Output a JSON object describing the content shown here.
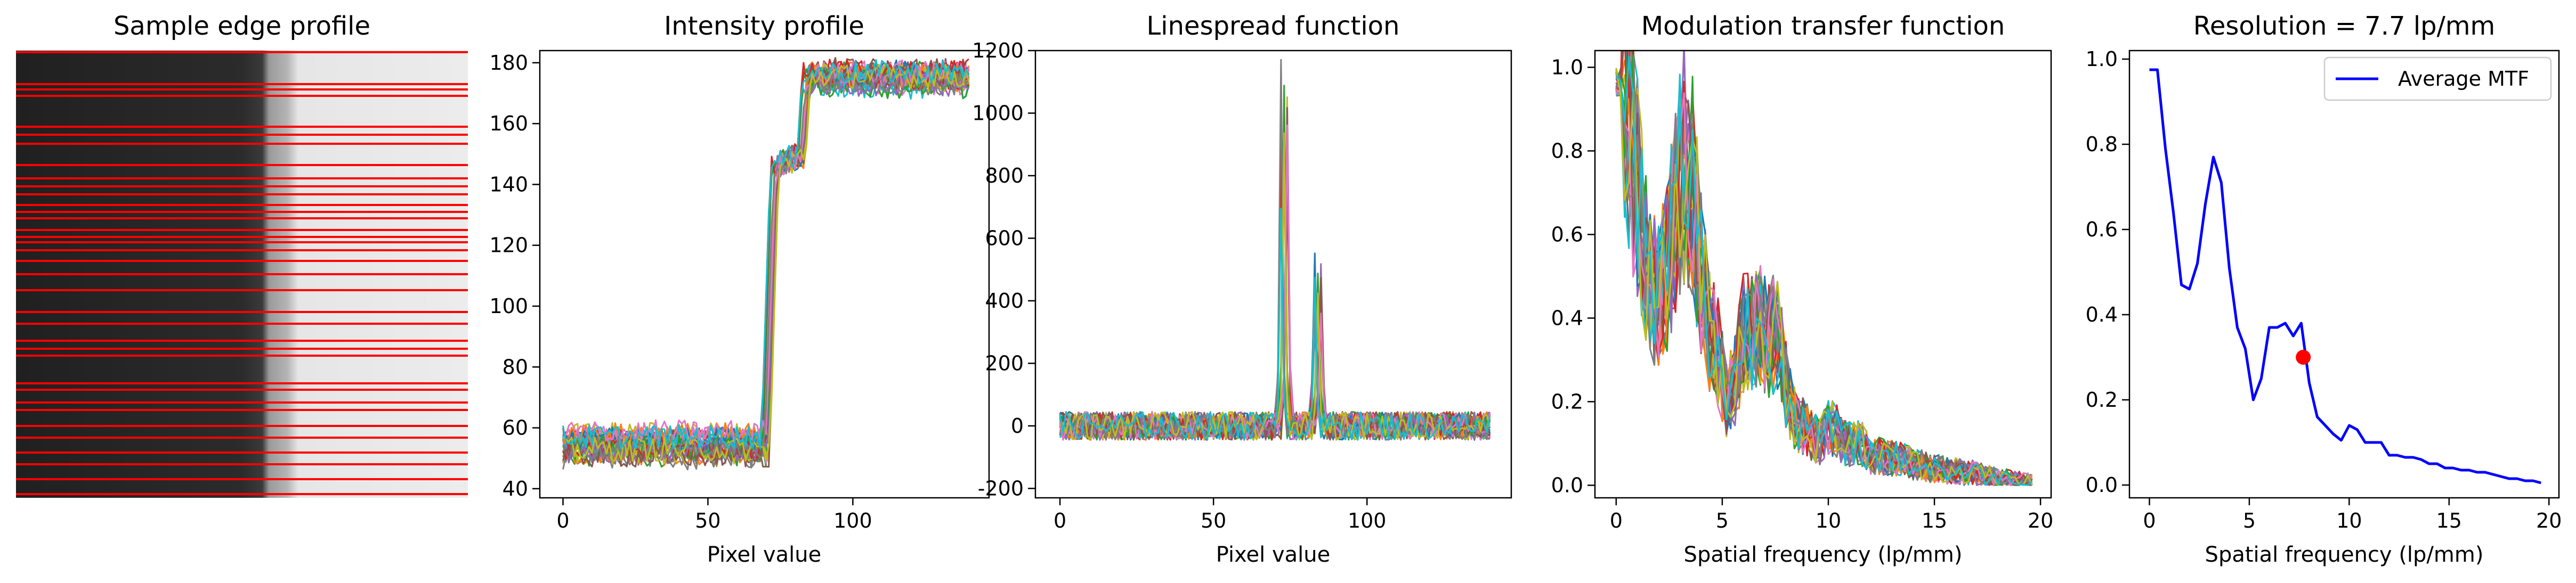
{
  "chart_data": [
    {
      "type": "image",
      "title": "Sample edge profile",
      "edge_line_color": "#ff0000"
    },
    {
      "type": "line",
      "title": "Intensity profile",
      "xlabel": "Pixel value",
      "ylabel": "",
      "xlim": [
        -8,
        147
      ],
      "ylim": [
        37,
        184
      ],
      "xticks": [
        0,
        50,
        100
      ],
      "yticks": [
        40,
        60,
        80,
        100,
        120,
        140,
        160,
        180
      ],
      "series_count": 30,
      "shape": {
        "x_max": 140,
        "low": 55,
        "mid_start": 72,
        "mid_level": 145,
        "step2": 83,
        "high": 175,
        "noise": 4
      }
    },
    {
      "type": "line",
      "title": "Linespread function",
      "xlabel": "Pixel value",
      "ylabel": "",
      "xlim": [
        -8,
        147
      ],
      "ylim": [
        -230,
        1200
      ],
      "xticks": [
        0,
        50,
        100
      ],
      "yticks": [
        -200,
        0,
        200,
        400,
        600,
        800,
        1000,
        1200
      ],
      "series_count": 30,
      "shape": {
        "x_max": 140,
        "peak1_x": 73,
        "peak1": 1050,
        "peak2_x": 84,
        "peak2": 500,
        "noise": 45
      }
    },
    {
      "type": "line",
      "title": "Modulation transfer function",
      "xlabel": "Spatial frequency (lp/mm)",
      "ylabel": "",
      "xlim": [
        -1,
        20.5
      ],
      "ylim": [
        -0.03,
        1.04
      ],
      "xticks": [
        0,
        5,
        10,
        15,
        20
      ],
      "yticks": [
        0.0,
        0.2,
        0.4,
        0.6,
        0.8,
        1.0
      ],
      "series_count": 30
    },
    {
      "type": "line",
      "title": "Resolution = 7.7 lp/mm",
      "xlabel": "Spatial frequency (lp/mm)",
      "ylabel": "",
      "xlim": [
        -1,
        20.5
      ],
      "ylim": [
        -0.03,
        1.02
      ],
      "xticks": [
        0,
        5,
        10,
        15,
        20
      ],
      "yticks": [
        0.0,
        0.2,
        0.4,
        0.6,
        0.8,
        1.0
      ],
      "legend": {
        "position": "top-right",
        "entries": [
          "Average MTF"
        ]
      },
      "series": [
        {
          "name": "Average MTF",
          "color": "#0000ff",
          "x": [
            0.0,
            0.4,
            0.8,
            1.2,
            1.6,
            2.0,
            2.4,
            2.8,
            3.2,
            3.6,
            4.0,
            4.4,
            4.8,
            5.2,
            5.6,
            6.0,
            6.4,
            6.8,
            7.2,
            7.6,
            8.0,
            8.4,
            8.8,
            9.2,
            9.6,
            10.0,
            10.4,
            10.8,
            11.2,
            11.6,
            12.0,
            12.4,
            12.8,
            13.2,
            13.6,
            14.0,
            14.4,
            14.8,
            15.2,
            15.6,
            16.0,
            16.4,
            16.8,
            17.2,
            17.6,
            18.0,
            18.4,
            18.8,
            19.2,
            19.6
          ],
          "y": [
            0.975,
            0.975,
            0.79,
            0.64,
            0.47,
            0.46,
            0.52,
            0.66,
            0.77,
            0.71,
            0.51,
            0.37,
            0.32,
            0.2,
            0.25,
            0.37,
            0.37,
            0.38,
            0.35,
            0.38,
            0.24,
            0.16,
            0.14,
            0.12,
            0.105,
            0.14,
            0.13,
            0.1,
            0.1,
            0.1,
            0.07,
            0.07,
            0.065,
            0.065,
            0.06,
            0.05,
            0.05,
            0.04,
            0.04,
            0.035,
            0.035,
            0.03,
            0.03,
            0.025,
            0.02,
            0.015,
            0.015,
            0.01,
            0.01,
            0.005
          ]
        }
      ],
      "marker": {
        "x": 7.7,
        "y": 0.3,
        "color": "#ff0000"
      }
    }
  ]
}
